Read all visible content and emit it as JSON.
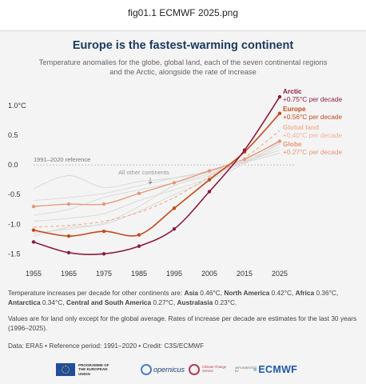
{
  "window": {
    "title": "fig01.1 ECMWF 2025.png"
  },
  "header": {
    "title": "Europe is the fastest-warming continent",
    "subtitle": "Temperature anomalies for the globe, global land, each of the seven continental regions and the Arctic, alongside the rate of increase"
  },
  "colors": {
    "arctic": "#8c1c3c",
    "europe": "#c34a1e",
    "global_land": "#f2b49a",
    "globe": "#e89578",
    "other_continents": "#d8d8d8",
    "title": "#1b3a5c"
  },
  "chart_data": {
    "type": "line",
    "title": "Europe is the fastest-warming continent",
    "subtitle": "Temperature anomalies for the globe, global land, each of the seven continental regions and the Arctic, alongside the rate of increase",
    "y_unit": "°C",
    "xlim": [
      1955,
      2025
    ],
    "ylim": [
      -1.6,
      1.3
    ],
    "x_ticks": [
      "1955",
      "1965",
      "1975",
      "1985",
      "1995",
      "2005",
      "2015",
      "2025"
    ],
    "y_ticks": [
      {
        "value": 1.0,
        "label": "1.0°C"
      },
      {
        "value": 0.5,
        "label": "0.5"
      },
      {
        "value": 0.0,
        "label": "0.0"
      },
      {
        "value": -0.5,
        "label": "-0.5"
      },
      {
        "value": -1.0,
        "label": "-1.0"
      },
      {
        "value": -1.5,
        "label": "-1.5"
      }
    ],
    "grid": false,
    "reference_line": {
      "value": 0.0,
      "label": "1991–2020 reference"
    },
    "other_continents_label": "All other continents",
    "series": [
      {
        "key": "arctic",
        "name": "Arctic",
        "rate": "+0.75°C per decade",
        "style": "solid",
        "markers": true,
        "x": [
          1955,
          1965,
          1975,
          1985,
          1995,
          2005,
          2015,
          2025
        ],
        "y": [
          -1.3,
          -1.48,
          -1.5,
          -1.37,
          -1.08,
          -0.45,
          0.25,
          1.15
        ]
      },
      {
        "key": "europe",
        "name": "Europe",
        "rate": "+0.56°C per decade",
        "style": "solid",
        "markers": true,
        "x": [
          1955,
          1965,
          1975,
          1985,
          1995,
          2005,
          2015,
          2025
        ],
        "y": [
          -1.1,
          -1.2,
          -1.12,
          -1.18,
          -0.73,
          -0.25,
          0.22,
          0.87
        ]
      },
      {
        "key": "global_land",
        "name": "Global land",
        "rate": "+0.40°C per decade",
        "style": "dashed",
        "markers": false,
        "x": [
          1955,
          1965,
          1975,
          1985,
          1995,
          2005,
          2015,
          2025
        ],
        "y": [
          -1.05,
          -1.02,
          -0.95,
          -0.8,
          -0.55,
          -0.2,
          0.12,
          0.58
        ]
      },
      {
        "key": "globe",
        "name": "Globe",
        "rate": "+0.27°C per decade",
        "style": "solid",
        "markers": true,
        "x": [
          1955,
          1965,
          1975,
          1985,
          1995,
          2005,
          2015,
          2025
        ],
        "y": [
          -0.7,
          -0.66,
          -0.66,
          -0.48,
          -0.3,
          -0.1,
          0.1,
          0.4
        ]
      }
    ],
    "other_continents_lines": [
      {
        "x": [
          1955,
          1965,
          1975,
          1985,
          1995,
          2005,
          2015,
          2025
        ],
        "y": [
          -0.4,
          -0.18,
          -0.38,
          -0.28,
          -0.22,
          -0.12,
          0.05,
          0.3
        ]
      },
      {
        "x": [
          1955,
          1965,
          1975,
          1985,
          1995,
          2005,
          2015,
          2025
        ],
        "y": [
          -0.85,
          -0.75,
          -0.55,
          -0.42,
          -0.3,
          -0.15,
          0.06,
          0.35
        ]
      },
      {
        "x": [
          1955,
          1965,
          1975,
          1985,
          1995,
          2005,
          2015,
          2025
        ],
        "y": [
          -1.15,
          -1.08,
          -0.98,
          -0.7,
          -0.35,
          -0.18,
          0.08,
          0.42
        ]
      },
      {
        "x": [
          1955,
          1965,
          1975,
          1985,
          1995,
          2005,
          2015,
          2025
        ],
        "y": [
          -0.95,
          -0.9,
          -0.82,
          -0.6,
          -0.42,
          -0.22,
          0.05,
          0.25
        ]
      },
      {
        "x": [
          1955,
          1965,
          1975,
          1985,
          1995,
          2005,
          2015,
          2025
        ],
        "y": [
          -0.6,
          -0.55,
          -0.48,
          -0.35,
          -0.22,
          -0.1,
          0.04,
          0.2
        ]
      },
      {
        "x": [
          1955,
          1965,
          1975,
          1985,
          1995,
          2005,
          2015,
          2025
        ],
        "y": [
          -1.2,
          -1.05,
          -1.0,
          -0.78,
          -0.5,
          -0.25,
          0.02,
          0.38
        ]
      }
    ]
  },
  "notes": {
    "continents_prefix": "Temperature increases per decade for other continents are: ",
    "continents": [
      {
        "name": "Asia",
        "value": "0.46°C"
      },
      {
        "name": "North America",
        "value": "0.42°C"
      },
      {
        "name": "Africa",
        "value": "0.36°C"
      },
      {
        "name": "Antarctica",
        "value": "0.34°C"
      },
      {
        "name": "Central and South America",
        "value": "0.27°C"
      },
      {
        "name": "Australasia",
        "value": "0.23°C"
      }
    ],
    "paragraph2": "Values are for land only except for the global average. Rates of increase per decade are estimates for the last 30 years (1996–2025).",
    "source": "Data: ERA5 • Reference period: 1991–2020 • Credit: C3S/ECMWF"
  },
  "logos": {
    "eu": "PROGRAMME OF THE EUROPEAN UNION",
    "copernicus": "opernicus",
    "c3s": "Climate Change Service",
    "ecmwf_small": "IMPLEMENTED BY",
    "ecmwf": "ECMWF",
    "eu_icon": "eu-flag-icon",
    "copernicus_icon": "copernicus-ring-icon",
    "c3s_icon": "c3s-ring-icon",
    "ecmwf_icon": "ecmwf-mark-icon"
  }
}
